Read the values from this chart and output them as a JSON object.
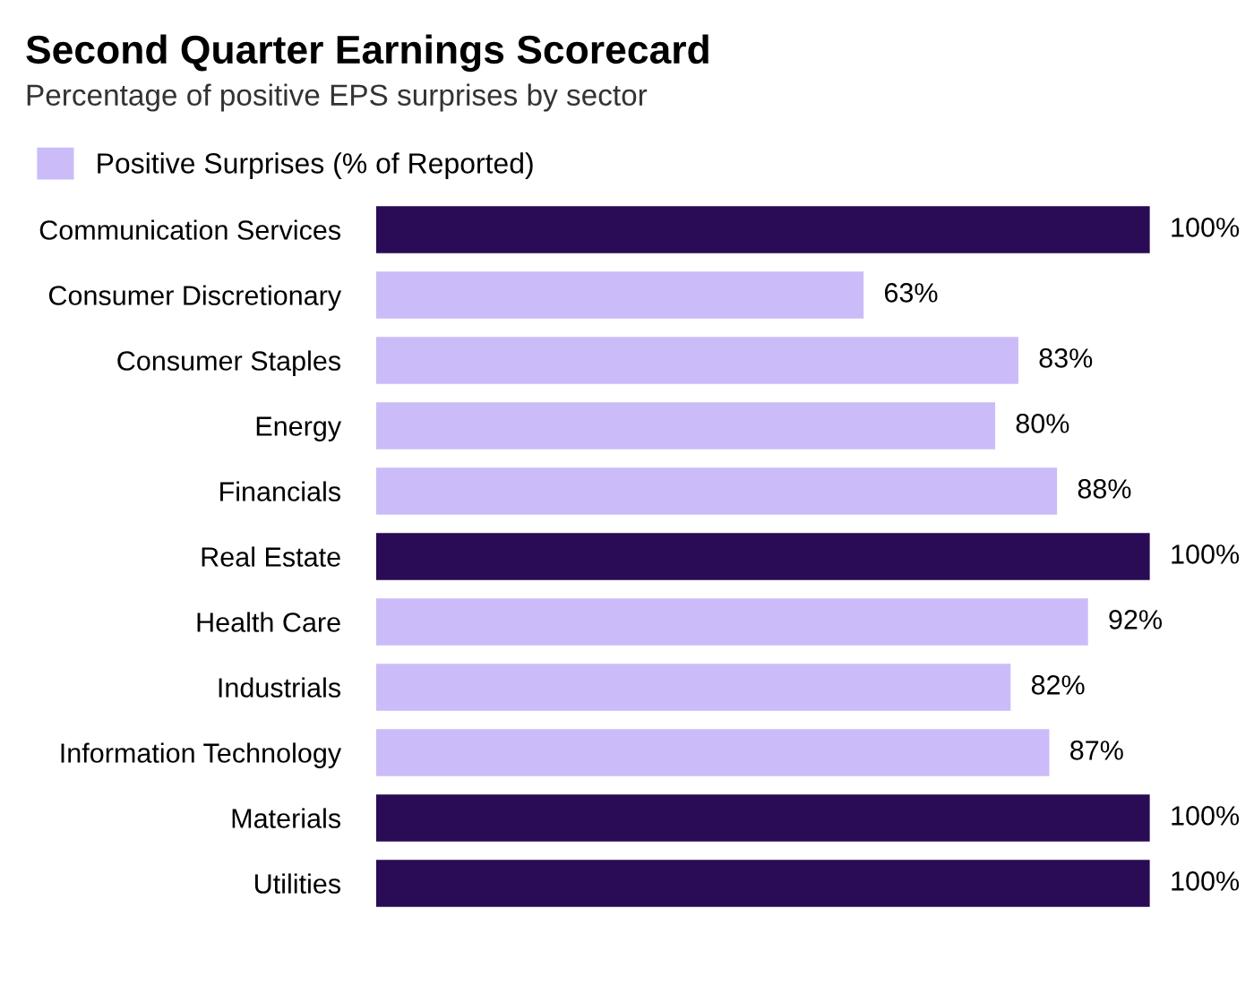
{
  "chart_data": {
    "type": "bar",
    "orientation": "horizontal",
    "title": "Second Quarter Earnings Scorecard",
    "subtitle": "Percentage of positive EPS surprises by sector",
    "categories": [
      "Communication Services",
      "Consumer Discretionary",
      "Consumer Staples",
      "Energy",
      "Financials",
      "Real Estate",
      "Health Care",
      "Industrials",
      "Information Technology",
      "Materials",
      "Utilities"
    ],
    "series": [
      {
        "name": "Positive Surprises (% of Reported)",
        "color": "#cbbcf9",
        "colors": [
          "#2a0b55",
          "#cbbcf9",
          "#cbbcf9",
          "#cbbcf9",
          "#cbbcf9",
          "#2a0b55",
          "#cbbcf9",
          "#cbbcf9",
          "#cbbcf9",
          "#2a0b55",
          "#2a0b55"
        ],
        "values": [
          100,
          63,
          83,
          80,
          88,
          100,
          92,
          82,
          87,
          100,
          100
        ],
        "value_labels": [
          "100%",
          "63%",
          "83%",
          "80%",
          "88%",
          "100%",
          "92%",
          "82%",
          "87%",
          "100%",
          "100%"
        ]
      }
    ],
    "legend": "top left",
    "grid": false
  }
}
